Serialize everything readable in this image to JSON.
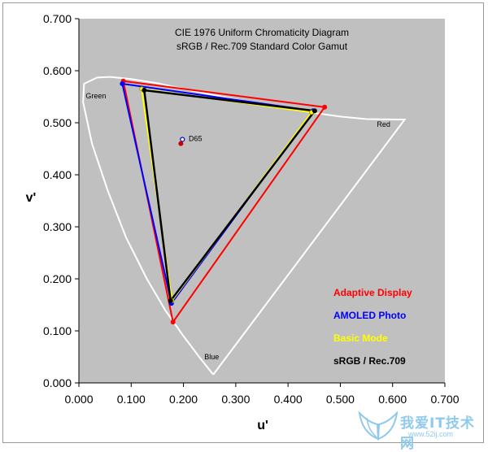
{
  "chart_data": {
    "type": "scatter",
    "title": "CIE 1976 Uniform Chromaticity Diagram",
    "subtitle": "sRGB / Rec.709 Standard Color Gamut",
    "xlabel": "u'",
    "ylabel": "v'",
    "xlim": [
      0,
      0.7
    ],
    "ylim": [
      0,
      0.7
    ],
    "xticks": [
      "0.000",
      "0.100",
      "0.200",
      "0.300",
      "0.400",
      "0.500",
      "0.600",
      "0.700"
    ],
    "yticks": [
      "0.000",
      "0.100",
      "0.200",
      "0.300",
      "0.400",
      "0.500",
      "0.600",
      "0.700"
    ],
    "grid": false,
    "plot_background": "#c0c0c0",
    "spectral_locus": {
      "color": "#ffffff",
      "points": [
        [
          0.257,
          0.016
        ],
        [
          0.23,
          0.05
        ],
        [
          0.2,
          0.09
        ],
        [
          0.165,
          0.14
        ],
        [
          0.13,
          0.2
        ],
        [
          0.09,
          0.28
        ],
        [
          0.055,
          0.37
        ],
        [
          0.025,
          0.46
        ],
        [
          0.008,
          0.54
        ],
        [
          0.01,
          0.575
        ],
        [
          0.035,
          0.587
        ],
        [
          0.06,
          0.588
        ],
        [
          0.1,
          0.584
        ],
        [
          0.15,
          0.576
        ],
        [
          0.2,
          0.565
        ],
        [
          0.25,
          0.555
        ],
        [
          0.3,
          0.545
        ],
        [
          0.35,
          0.535
        ],
        [
          0.4,
          0.527
        ],
        [
          0.45,
          0.519
        ],
        [
          0.5,
          0.512
        ],
        [
          0.55,
          0.507
        ],
        [
          0.623,
          0.506
        ],
        [
          0.257,
          0.016
        ]
      ]
    },
    "annotations": [
      {
        "text": "Green",
        "x": 0.013,
        "y": 0.547
      },
      {
        "text": "Red",
        "x": 0.57,
        "y": 0.492
      },
      {
        "text": "Blue",
        "x": 0.24,
        "y": 0.045
      },
      {
        "text": "D65",
        "x": 0.21,
        "y": 0.465
      }
    ],
    "white_point": {
      "u": 0.198,
      "v": 0.468,
      "color": "#0000cc"
    },
    "white_point_adaptive": {
      "u": 0.195,
      "v": 0.46,
      "color": "#cc0000"
    },
    "series": [
      {
        "name": "Adaptive Display",
        "color": "#ff0000",
        "points": [
          [
            0.085,
            0.58
          ],
          [
            0.47,
            0.53
          ],
          [
            0.18,
            0.117
          ]
        ]
      },
      {
        "name": "AMOLED Photo",
        "color": "#0000ff",
        "points": [
          [
            0.083,
            0.575
          ],
          [
            0.448,
            0.523
          ],
          [
            0.177,
            0.153
          ]
        ]
      },
      {
        "name": "Basic Mode",
        "color": "#ffff00",
        "points": [
          [
            0.12,
            0.565
          ],
          [
            0.445,
            0.52
          ],
          [
            0.178,
            0.158
          ]
        ]
      },
      {
        "name": "sRGB / Rec.709",
        "color": "#000000",
        "points": [
          [
            0.125,
            0.5625
          ],
          [
            0.451,
            0.5229
          ],
          [
            0.1754,
            0.1579
          ]
        ]
      }
    ]
  },
  "watermark": {
    "text": "我爱IT技术网",
    "url": "www.52ij.com"
  }
}
